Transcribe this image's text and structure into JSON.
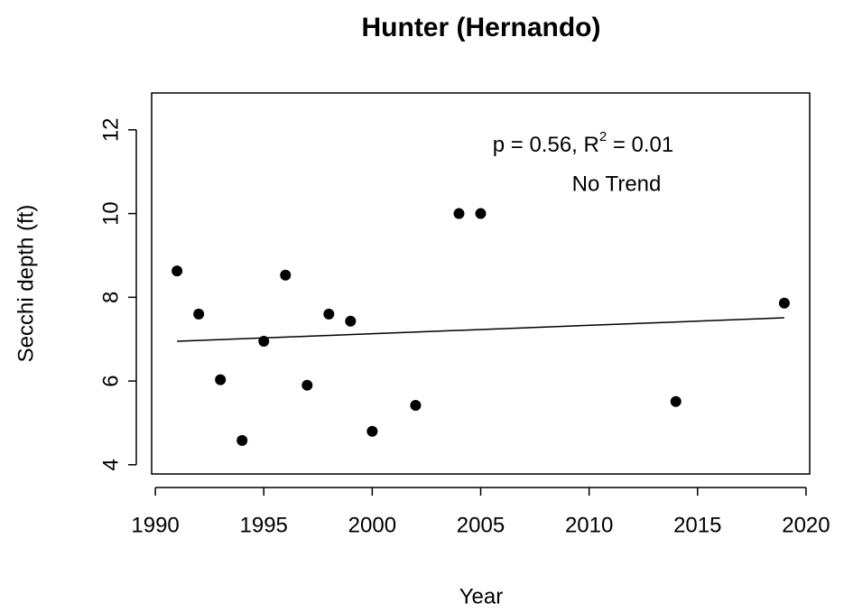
{
  "chart_data": {
    "type": "scatter",
    "title": "Hunter (Hernando)",
    "x_label": "Year",
    "y_label": "Secchi depth (ft)",
    "x": [
      1991,
      1992,
      1993,
      1994,
      1995,
      1996,
      1997,
      1998,
      1999,
      2000,
      2002,
      2004,
      2005,
      2014,
      2019
    ],
    "values": [
      8.63,
      7.6,
      6.03,
      4.58,
      6.95,
      8.53,
      5.9,
      7.6,
      7.43,
      4.8,
      5.42,
      10,
      10,
      5.51,
      7.86
    ],
    "color": "#000000",
    "trend_line": {
      "x": [
        1991,
        2019
      ],
      "y": [
        6.95,
        7.51
      ],
      "color": "#000000"
    },
    "annotation_line1": [
      "p = 0.56, R",
      "2",
      " = 0.01"
    ],
    "annotation_line2": "No Trend",
    "xlim": [
      1989.83,
      2020.17
    ],
    "ylim": [
      3.78,
      12.88
    ],
    "xticks": [
      1990,
      1995,
      2000,
      2005,
      2010,
      2015,
      2020
    ],
    "yticks": [
      4,
      6,
      8,
      10,
      12
    ],
    "grid": false
  }
}
